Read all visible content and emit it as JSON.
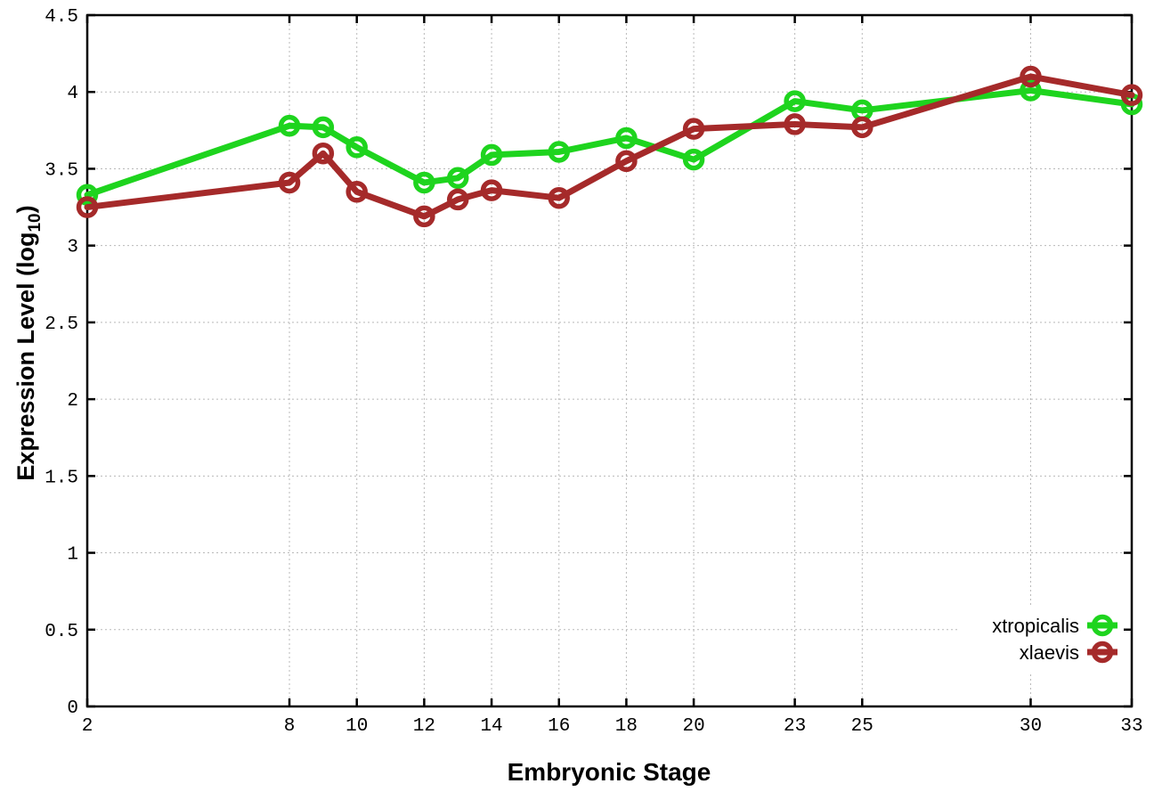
{
  "chart_data": {
    "type": "line",
    "title": "",
    "xlabel": "Embryonic Stage",
    "ylabel": "Expression Level (log10)",
    "ylabel_parts": {
      "main": "Expression Level (log",
      "sub": "10",
      "end": ")"
    },
    "xlim": [
      2,
      33
    ],
    "ylim": [
      0,
      4.5
    ],
    "grid": true,
    "legend_position": "inside-bottom-right",
    "marker_style": "open-circle",
    "x": [
      2,
      8,
      9,
      10,
      12,
      13,
      14,
      16,
      18,
      20,
      23,
      25,
      30,
      33
    ],
    "x_tick_values": [
      2,
      8,
      10,
      12,
      14,
      16,
      18,
      20,
      23,
      25,
      30,
      33
    ],
    "x_tick_labels": [
      "2",
      "8",
      "10",
      "12",
      "14",
      "16",
      "18",
      "20",
      "23",
      "25",
      "30",
      "33"
    ],
    "y_tick_values": [
      0,
      0.5,
      1,
      1.5,
      2,
      2.5,
      3,
      3.5,
      4,
      4.5
    ],
    "y_tick_labels": [
      "0",
      "0.5",
      "1",
      "1.5",
      "2",
      "2.5",
      "3",
      "3.5",
      "4",
      "4.5"
    ],
    "series": [
      {
        "name": "xtropicalis",
        "color": "#1ed41e",
        "values": [
          3.33,
          3.78,
          3.77,
          3.64,
          3.41,
          3.44,
          3.59,
          3.61,
          3.7,
          3.56,
          3.94,
          3.88,
          4.01,
          3.92
        ]
      },
      {
        "name": "xlaevis",
        "color": "#a52a2a",
        "values": [
          3.25,
          3.41,
          3.6,
          3.35,
          3.19,
          3.3,
          3.36,
          3.31,
          3.55,
          3.76,
          3.79,
          3.77,
          4.1,
          3.98
        ]
      }
    ],
    "colors": {
      "background": "#ffffff",
      "axis": "#000000",
      "grid": "#b9b9b9",
      "text": "#000000"
    }
  }
}
